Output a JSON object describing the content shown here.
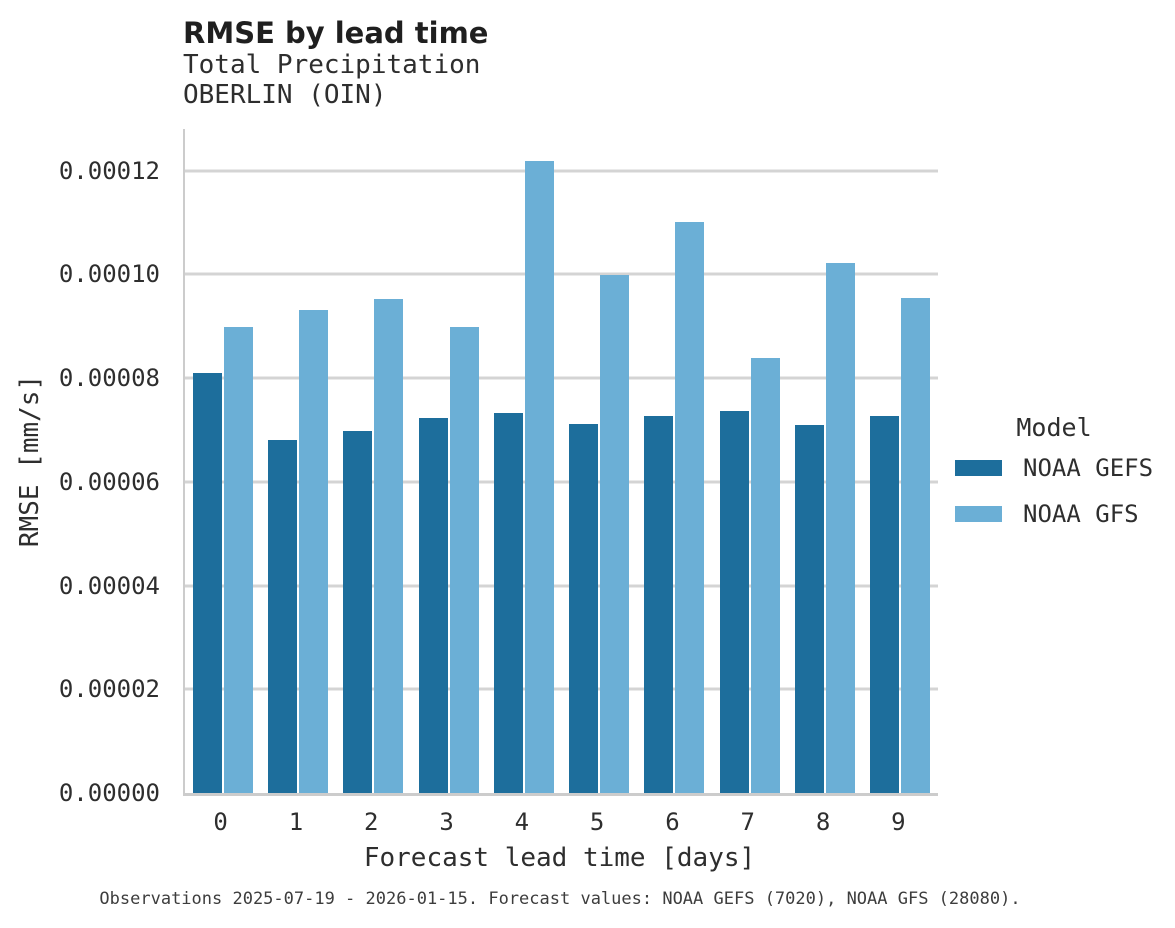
{
  "chart_data": {
    "type": "bar",
    "title": "RMSE by lead time",
    "subtitle": "Total Precipitation",
    "station": "OBERLIN (OIN)",
    "categories": [
      "0",
      "1",
      "2",
      "3",
      "4",
      "5",
      "6",
      "7",
      "8",
      "9"
    ],
    "series": [
      {
        "name": "NOAA GEFS",
        "color": "#1d6e9c",
        "values": [
          8.1e-05,
          6.8e-05,
          6.98e-05,
          7.22e-05,
          7.32e-05,
          7.11e-05,
          7.27e-05,
          7.36e-05,
          7.1e-05,
          7.26e-05
        ]
      },
      {
        "name": "NOAA GFS",
        "color": "#6bafd6",
        "values": [
          8.98e-05,
          9.32e-05,
          9.53e-05,
          8.98e-05,
          0.0001218,
          9.98e-05,
          0.00011,
          8.38e-05,
          0.0001022,
          9.54e-05
        ]
      }
    ],
    "xlabel": "Forecast lead time [days]",
    "ylabel": "RMSE [mm/s]",
    "ylim": [
      0,
      0.000128
    ],
    "yticks": [
      0,
      2e-05,
      4e-05,
      6e-05,
      8e-05,
      0.0001,
      0.00012
    ],
    "ytick_labels": [
      "0.00000",
      "0.00002",
      "0.00004",
      "0.00006",
      "0.00008",
      "0.00010",
      "0.00012"
    ],
    "grid": true,
    "legend_title": "Model",
    "legend_position": "right"
  },
  "footer": {
    "note": "Observations 2025-07-19 - 2026-01-15. Forecast values: NOAA GEFS (7020), NOAA GFS (28080)."
  },
  "colors": {
    "grid": "#d4d4d4",
    "axis": "#cccccc",
    "text": "#2e2e2e"
  }
}
